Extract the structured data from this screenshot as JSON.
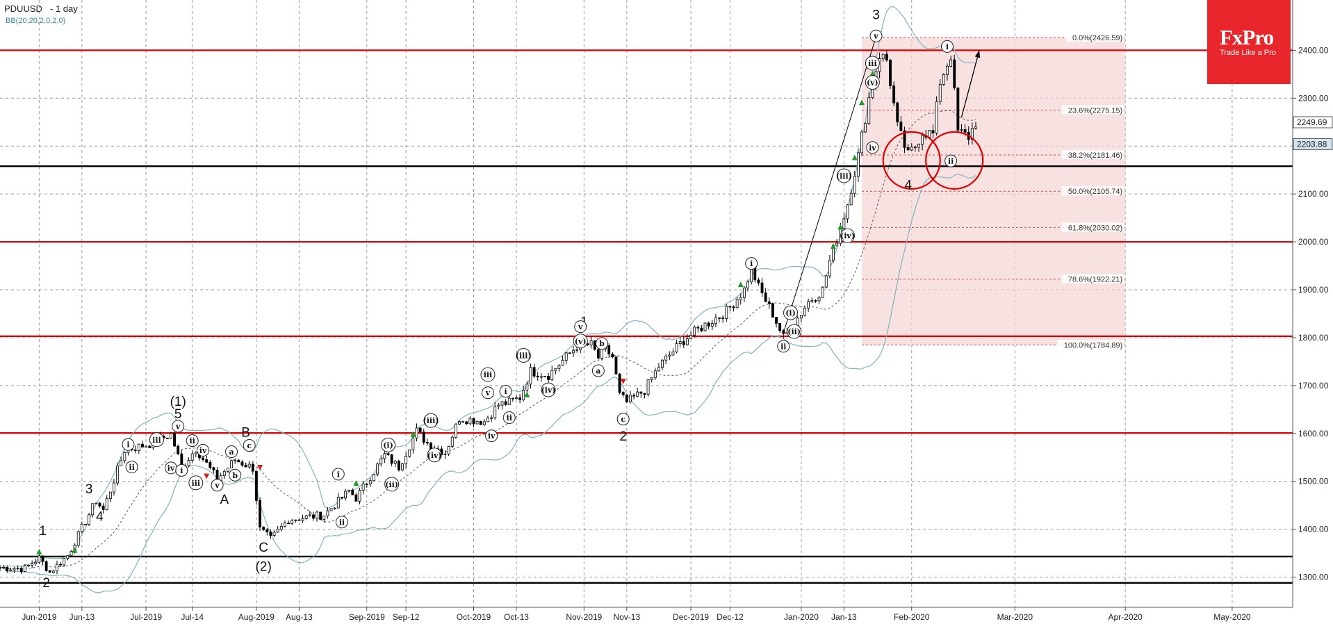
{
  "header": {
    "symbol": "PDUUSD",
    "timeframe": "- 1 day",
    "indicator": "BB(20,20,2,0,2,0)"
  },
  "logo": {
    "brand": "FxPro",
    "tagline": "Trade Like a Pro"
  },
  "price_tags": {
    "current": {
      "value": 2249.69,
      "label": "2249.69",
      "color": "#ffffff"
    },
    "lower": {
      "value": 2203.88,
      "label": "2203.88",
      "color": "#d5e4f2"
    }
  },
  "colors": {
    "resistance": "#e00000",
    "support": "#000000",
    "bollinger": "#7fb3be",
    "fib_zone": "#f5d4d4",
    "bull_candle": "#ffffff",
    "bear_candle": "#000000"
  },
  "chart_data": {
    "type": "candlestick",
    "yaxis": {
      "min": 1237,
      "max": 2505,
      "ticks": [
        1300,
        1400,
        1500,
        1600,
        1700,
        1800,
        1900,
        2000,
        2100,
        2200,
        2300,
        2400
      ],
      "tick_labels": [
        "1300.00",
        "1400.00",
        "1500.00",
        "1600.00",
        "1700.00",
        "1800.00",
        "1900.00",
        "2000.00",
        "2100.00",
        "2200.00",
        "2300.00",
        "2400.00"
      ]
    },
    "xaxis": {
      "start": "2019-05-21",
      "end": "2020-05-18",
      "ticks": [
        "2019-06-01",
        "2019-06-13",
        "2019-07-01",
        "2019-07-14",
        "2019-08-01",
        "2019-08-13",
        "2019-09-01",
        "2019-09-12",
        "2019-10-01",
        "2019-10-13",
        "2019-11-01",
        "2019-11-13",
        "2019-12-01",
        "2019-12-12",
        "2020-01-01",
        "2020-01-13",
        "2020-02-01",
        "2020-03-01",
        "2020-04-01",
        "2020-05-01"
      ],
      "tick_labels": [
        "Jun-2019",
        "Jun-13",
        "Jul-2019",
        "Jul-14",
        "Aug-2019",
        "Aug-13",
        "Sep-2019",
        "Sep-12",
        "Oct-2019",
        "Oct-13",
        "Nov-2019",
        "Nov-13",
        "Dec-2019",
        "Dec-12",
        "Jan-2020",
        "Jan-13",
        "Feb-2020",
        "Mar-2020",
        "Apr-2020",
        "May-2020"
      ]
    },
    "horizontal_lines": {
      "resistance": [
        2400,
        2000,
        1803,
        1601
      ],
      "support": [
        2158,
        1343,
        1288
      ]
    },
    "fibonacci": {
      "start_date": "2020-01-18",
      "end_date": "2020-04-01",
      "levels": [
        {
          "label": "0.0%(2426.59)",
          "value": 2426.59
        },
        {
          "label": "23.6%(2275.15)",
          "value": 2275.15
        },
        {
          "label": "38.2%(2181.46)",
          "value": 2181.46
        },
        {
          "label": "50.0%(2105.74)",
          "value": 2105.74
        },
        {
          "label": "61.8%(2030.02)",
          "value": 2030.02
        },
        {
          "label": "78.6%(1922.21)",
          "value": 1922.21
        },
        {
          "label": "100.0%(1784.89)",
          "value": 1784.89
        }
      ]
    },
    "path_knots": [
      [
        "2019-05-21",
        1320
      ],
      [
        "2019-05-28",
        1318
      ],
      [
        "2019-06-01",
        1340
      ],
      [
        "2019-06-04",
        1310
      ],
      [
        "2019-06-09",
        1345
      ],
      [
        "2019-06-17",
        1460
      ],
      [
        "2019-06-19",
        1440
      ],
      [
        "2019-06-25",
        1565
      ],
      [
        "2019-07-03",
        1580
      ],
      [
        "2019-07-08",
        1598
      ],
      [
        "2019-07-11",
        1530
      ],
      [
        "2019-07-15",
        1568
      ],
      [
        "2019-07-21",
        1505
      ],
      [
        "2019-07-26",
        1545
      ],
      [
        "2019-07-31",
        1528
      ],
      [
        "2019-08-02",
        1400
      ],
      [
        "2019-08-05",
        1380
      ],
      [
        "2019-08-10",
        1420
      ],
      [
        "2019-08-20",
        1430
      ],
      [
        "2019-08-27",
        1480
      ],
      [
        "2019-08-29",
        1465
      ],
      [
        "2019-09-02",
        1510
      ],
      [
        "2019-09-06",
        1555
      ],
      [
        "2019-09-10",
        1530
      ],
      [
        "2019-09-15",
        1605
      ],
      [
        "2019-09-18",
        1580
      ],
      [
        "2019-09-23",
        1560
      ],
      [
        "2019-09-27",
        1632
      ],
      [
        "2019-10-04",
        1625
      ],
      [
        "2019-10-08",
        1660
      ],
      [
        "2019-10-11",
        1665
      ],
      [
        "2019-10-14",
        1675
      ],
      [
        "2019-10-17",
        1730
      ],
      [
        "2019-10-22",
        1722
      ],
      [
        "2019-10-26",
        1752
      ],
      [
        "2019-10-30",
        1783
      ],
      [
        "2019-11-03",
        1785
      ],
      [
        "2019-11-05",
        1758
      ],
      [
        "2019-11-07",
        1775
      ],
      [
        "2019-11-09",
        1760
      ],
      [
        "2019-11-11",
        1680
      ],
      [
        "2019-11-13",
        1665
      ],
      [
        "2019-11-18",
        1690
      ],
      [
        "2019-11-22",
        1740
      ],
      [
        "2019-11-29",
        1795
      ],
      [
        "2019-12-04",
        1822
      ],
      [
        "2019-12-11",
        1855
      ],
      [
        "2019-12-16",
        1900
      ],
      [
        "2019-12-18",
        1945
      ],
      [
        "2019-12-20",
        1905
      ],
      [
        "2019-12-24",
        1850
      ],
      [
        "2019-12-27",
        1800
      ],
      [
        "2019-12-30",
        1830
      ],
      [
        "2020-01-03",
        1875
      ],
      [
        "2020-01-07",
        1900
      ],
      [
        "2020-01-09",
        1960
      ],
      [
        "2020-01-12",
        2030
      ],
      [
        "2020-01-14",
        2080
      ],
      [
        "2020-01-17",
        2180
      ],
      [
        "2020-01-20",
        2300
      ],
      [
        "2020-01-23",
        2390
      ],
      [
        "2020-01-25",
        2380
      ],
      [
        "2020-01-28",
        2240
      ],
      [
        "2020-01-31",
        2180
      ],
      [
        "2020-02-02",
        2200
      ],
      [
        "2020-02-04",
        2230
      ],
      [
        "2020-02-07",
        2225
      ],
      [
        "2020-02-09",
        2335
      ],
      [
        "2020-02-12",
        2390
      ],
      [
        "2020-02-14",
        2230
      ],
      [
        "2020-02-17",
        2220
      ],
      [
        "2020-02-19",
        2250
      ]
    ],
    "wave_labels": [
      {
        "text": "1",
        "date": "2019-06-02",
        "price": 1398,
        "size": "big"
      },
      {
        "text": "2",
        "date": "2019-06-03",
        "price": 1289,
        "size": "big"
      },
      {
        "text": "3",
        "date": "2019-06-15",
        "price": 1485,
        "size": "big"
      },
      {
        "text": "4",
        "date": "2019-06-18",
        "price": 1428,
        "size": "big"
      },
      {
        "text": "(1)",
        "date": "2019-07-10",
        "price": 1668,
        "size": "big"
      },
      {
        "text": "5",
        "date": "2019-07-10",
        "price": 1642,
        "size": "big"
      },
      {
        "text": "B",
        "date": "2019-07-29",
        "price": 1603,
        "size": "big"
      },
      {
        "text": "A",
        "date": "2019-07-23",
        "price": 1463,
        "size": "big"
      },
      {
        "text": "C",
        "date": "2019-08-03",
        "price": 1363,
        "size": "big"
      },
      {
        "text": "(2)",
        "date": "2019-08-03",
        "price": 1323,
        "size": "big"
      },
      {
        "text": "1",
        "date": "2019-11-01",
        "price": 1835,
        "size": "big"
      },
      {
        "text": "2",
        "date": "2019-11-12",
        "price": 1595,
        "size": "big"
      },
      {
        "text": "3",
        "date": "2020-01-22",
        "price": 2475,
        "size": "big"
      },
      {
        "text": "4",
        "date": "2020-01-31",
        "price": 2120,
        "size": "big"
      },
      {
        "text": "v",
        "date": "2019-07-10",
        "price": 1615,
        "size": "circle"
      },
      {
        "text": "iii",
        "date": "2019-07-04",
        "price": 1587,
        "size": "circle"
      },
      {
        "text": "i",
        "date": "2019-06-26",
        "price": 1577,
        "size": "circle"
      },
      {
        "text": "ii",
        "date": "2019-06-27",
        "price": 1530,
        "size": "circle"
      },
      {
        "text": "iv",
        "date": "2019-07-08",
        "price": 1528,
        "size": "circle"
      },
      {
        "text": "i",
        "date": "2019-07-11",
        "price": 1523,
        "size": "circle"
      },
      {
        "text": "ii",
        "date": "2019-07-14",
        "price": 1585,
        "size": "circle"
      },
      {
        "text": "iii",
        "date": "2019-07-15",
        "price": 1497,
        "size": "circle"
      },
      {
        "text": "iv",
        "date": "2019-07-17",
        "price": 1565,
        "size": "circle"
      },
      {
        "text": "v",
        "date": "2019-07-21",
        "price": 1492,
        "size": "circle"
      },
      {
        "text": "a",
        "date": "2019-07-25",
        "price": 1562,
        "size": "circle"
      },
      {
        "text": "b",
        "date": "2019-07-26",
        "price": 1513,
        "size": "circle"
      },
      {
        "text": "c",
        "date": "2019-07-30",
        "price": 1575,
        "size": "circle"
      },
      {
        "text": "i",
        "date": "2019-08-24",
        "price": 1515,
        "size": "circle"
      },
      {
        "text": "ii",
        "date": "2019-08-25",
        "price": 1415,
        "size": "circle"
      },
      {
        "text": "(i)",
        "date": "2019-09-07",
        "price": 1576,
        "size": "circle"
      },
      {
        "text": "(ii)",
        "date": "2019-09-08",
        "price": 1494,
        "size": "circle"
      },
      {
        "text": "(iii)",
        "date": "2019-09-19",
        "price": 1627,
        "size": "circle"
      },
      {
        "text": "(iv)",
        "date": "2019-09-20",
        "price": 1555,
        "size": "circle"
      },
      {
        "text": "iii",
        "date": "2019-10-05",
        "price": 1723,
        "size": "circle"
      },
      {
        "text": "v",
        "date": "2019-10-05",
        "price": 1685,
        "size": "circle"
      },
      {
        "text": "iv",
        "date": "2019-10-06",
        "price": 1595,
        "size": "circle"
      },
      {
        "text": "i",
        "date": "2019-10-10",
        "price": 1688,
        "size": "circle"
      },
      {
        "text": "ii",
        "date": "2019-10-11",
        "price": 1633,
        "size": "circle"
      },
      {
        "text": "(iii)",
        "date": "2019-10-15",
        "price": 1763,
        "size": "circle"
      },
      {
        "text": "(iv)",
        "date": "2019-10-22",
        "price": 1691,
        "size": "circle"
      },
      {
        "text": "v",
        "date": "2019-10-31",
        "price": 1823,
        "size": "circle"
      },
      {
        "text": "(v)",
        "date": "2019-10-31",
        "price": 1793,
        "size": "circle"
      },
      {
        "text": "b",
        "date": "2019-11-06",
        "price": 1788,
        "size": "circle"
      },
      {
        "text": "a",
        "date": "2019-11-05",
        "price": 1731,
        "size": "circle"
      },
      {
        "text": "c",
        "date": "2019-11-12",
        "price": 1630,
        "size": "circle"
      },
      {
        "text": "i",
        "date": "2019-12-18",
        "price": 1955,
        "size": "circle"
      },
      {
        "text": "ii",
        "date": "2019-12-27",
        "price": 1782,
        "size": "circle"
      },
      {
        "text": "(i)",
        "date": "2019-12-29",
        "price": 1852,
        "size": "circle"
      },
      {
        "text": "(ii)",
        "date": "2019-12-30",
        "price": 1813,
        "size": "circle"
      },
      {
        "text": "(iii)",
        "date": "2020-01-13",
        "price": 2138,
        "size": "circle"
      },
      {
        "text": "(iv)",
        "date": "2020-01-14",
        "price": 2013,
        "size": "circle"
      },
      {
        "text": "v",
        "date": "2020-01-22",
        "price": 2430,
        "size": "circle"
      },
      {
        "text": "iii",
        "date": "2020-01-21",
        "price": 2373,
        "size": "circle"
      },
      {
        "text": "(v)",
        "date": "2020-01-21",
        "price": 2333,
        "size": "circle"
      },
      {
        "text": "iv",
        "date": "2020-01-21",
        "price": 2197,
        "size": "circle"
      },
      {
        "text": "i",
        "date": "2020-02-11",
        "price": 2408,
        "size": "circle"
      },
      {
        "text": "ii",
        "date": "2020-02-12",
        "price": 2169,
        "size": "circle"
      }
    ],
    "signal_arrows": [
      {
        "date": "2019-06-01",
        "price": 1352,
        "dir": "up"
      },
      {
        "date": "2019-06-11",
        "price": 1355,
        "dir": "up"
      },
      {
        "date": "2019-07-18",
        "price": 1512,
        "dir": "down"
      },
      {
        "date": "2019-08-02",
        "price": 1530,
        "dir": "down"
      },
      {
        "date": "2019-08-29",
        "price": 1495,
        "dir": "up"
      },
      {
        "date": "2019-09-14",
        "price": 1597,
        "dir": "up"
      },
      {
        "date": "2019-10-16",
        "price": 1680,
        "dir": "up"
      },
      {
        "date": "2019-11-12",
        "price": 1710,
        "dir": "down"
      },
      {
        "date": "2019-12-15",
        "price": 1910,
        "dir": "up"
      },
      {
        "date": "2020-01-10",
        "price": 1990,
        "dir": "up"
      },
      {
        "date": "2020-01-12",
        "price": 2030,
        "dir": "up"
      },
      {
        "date": "2020-01-16",
        "price": 2175,
        "dir": "up"
      },
      {
        "date": "2020-01-18",
        "price": 2290,
        "dir": "up"
      },
      {
        "date": "2020-01-21",
        "price": 2350,
        "dir": "up"
      }
    ],
    "trendline": [
      [
        "2019-12-27",
        1810
      ],
      [
        "2020-01-22",
        2428
      ]
    ],
    "projection_arrow": [
      [
        "2020-02-15",
        2260
      ],
      [
        "2020-02-20",
        2400
      ]
    ],
    "circles": [
      {
        "date": "2020-02-01",
        "price": 2170
      },
      {
        "date": "2020-02-13",
        "price": 2170
      }
    ]
  }
}
